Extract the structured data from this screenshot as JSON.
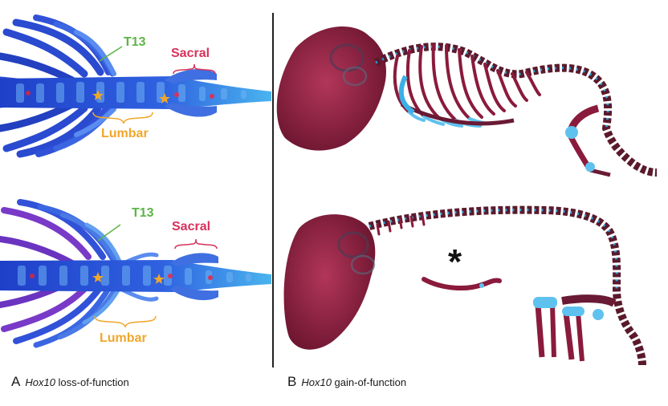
{
  "panel_a": {
    "top": {
      "t13_label": "T13",
      "sacral_label": "Sacral",
      "lumbar_label": "Lumbar"
    },
    "bottom": {
      "t13_label": "T13",
      "sacral_label": "Sacral",
      "lumbar_label": "Lumbar"
    },
    "caption_letter": "A",
    "caption_gene": "Hox10",
    "caption_text": " loss-of-function"
  },
  "panel_b": {
    "caption_letter": "B",
    "caption_gene": "Hox10",
    "caption_text": " gain-of-function",
    "asterisk": "*"
  },
  "colors": {
    "cartilage_blue": "#2a4fd8",
    "bone_red": "#8a1b3c",
    "t13": "#5db547",
    "sacral": "#d8325b",
    "lumbar": "#f0a72a"
  }
}
